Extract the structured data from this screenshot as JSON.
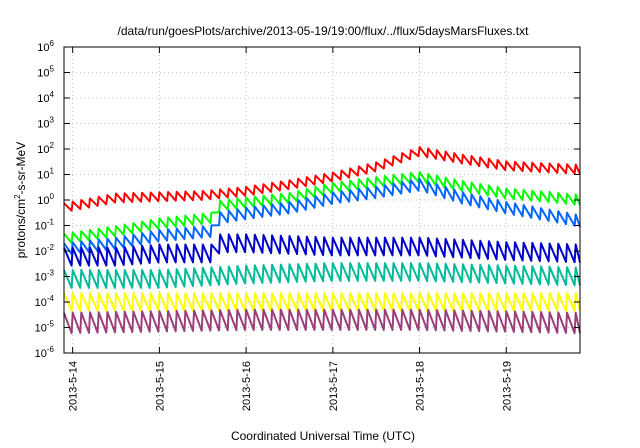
{
  "chart_data": {
    "type": "line",
    "title": "/data/run/goesPlots/archive/2013-05-19/19:00/flux/../flux/5daysMarsFluxes.txt",
    "xlabel": "Coordinated Universal Time (UTC)",
    "ylabel": "protons/cm²-s-sr-MeV",
    "ylabel_main": "protons/cm",
    "ylabel_sup": "2",
    "ylabel_rest": "-s-sr-MeV",
    "yscale": "log",
    "ylim": [
      1e-06,
      1000000.0
    ],
    "xlim": [
      -0.1,
      5.85
    ],
    "x_unit": "days after 2013-5-14",
    "yticks": [
      {
        "exp": -6,
        "base": "10",
        "sup": "-6"
      },
      {
        "exp": -5,
        "base": "10",
        "sup": "-5"
      },
      {
        "exp": -4,
        "base": "10",
        "sup": "-4"
      },
      {
        "exp": -3,
        "base": "10",
        "sup": "-3"
      },
      {
        "exp": -2,
        "base": "10",
        "sup": "-2"
      },
      {
        "exp": -1,
        "base": "10",
        "sup": "-1"
      },
      {
        "exp": 0,
        "base": "10",
        "sup": "0"
      },
      {
        "exp": 1,
        "base": "10",
        "sup": "1"
      },
      {
        "exp": 2,
        "base": "10",
        "sup": "2"
      },
      {
        "exp": 3,
        "base": "10",
        "sup": "3"
      },
      {
        "exp": 4,
        "base": "10",
        "sup": "4"
      },
      {
        "exp": 5,
        "base": "10",
        "sup": "5"
      },
      {
        "exp": 6,
        "base": "10",
        "sup": "6"
      }
    ],
    "xticks": [
      {
        "day": 0,
        "label": "2013-5-14"
      },
      {
        "day": 1,
        "label": "2013-5-15"
      },
      {
        "day": 2,
        "label": "2013-5-16"
      },
      {
        "day": 3,
        "label": "2013-5-17"
      },
      {
        "day": 4,
        "label": "2013-5-18"
      },
      {
        "day": 5,
        "label": "2013-5-19"
      }
    ],
    "grid": true,
    "legend": "none",
    "sawtooth_period_days": 0.1,
    "series": [
      {
        "color": "#ff0000",
        "amplitude_decades": 0.35,
        "envelope": [
          [
            -0.1,
            0.5
          ],
          [
            0.5,
            1.2
          ],
          [
            1.5,
            1.5
          ],
          [
            2.0,
            2.2
          ],
          [
            2.5,
            4
          ],
          [
            3.0,
            8
          ],
          [
            3.5,
            20
          ],
          [
            4.0,
            80
          ],
          [
            4.5,
            40
          ],
          [
            5.0,
            22
          ],
          [
            5.5,
            18
          ],
          [
            5.85,
            16
          ]
        ]
      },
      {
        "color": "#00ff00",
        "amplitude_decades": 0.4,
        "envelope": [
          [
            -0.1,
            0.03
          ],
          [
            0.5,
            0.06
          ],
          [
            1.0,
            0.12
          ],
          [
            1.6,
            0.2
          ],
          [
            1.7,
            0.6
          ],
          [
            2.0,
            0.8
          ],
          [
            2.5,
            1.2
          ],
          [
            3.0,
            3
          ],
          [
            3.5,
            5
          ],
          [
            4.0,
            8
          ],
          [
            4.5,
            3.5
          ],
          [
            5.0,
            1.8
          ],
          [
            5.5,
            1.3
          ],
          [
            5.85,
            1.0
          ]
        ]
      },
      {
        "color": "#0066ff",
        "amplitude_decades": 0.45,
        "envelope": [
          [
            -0.1,
            0.012
          ],
          [
            0.5,
            0.02
          ],
          [
            1.0,
            0.04
          ],
          [
            1.6,
            0.06
          ],
          [
            1.7,
            0.2
          ],
          [
            2.0,
            0.3
          ],
          [
            2.5,
            0.5
          ],
          [
            3.0,
            1.2
          ],
          [
            3.5,
            2
          ],
          [
            4.0,
            4
          ],
          [
            4.5,
            1.2
          ],
          [
            5.0,
            0.5
          ],
          [
            5.5,
            0.25
          ],
          [
            5.85,
            0.15
          ]
        ]
      },
      {
        "color": "#0000cc",
        "amplitude_decades": 0.7,
        "envelope": [
          [
            -0.1,
            0.006
          ],
          [
            0.5,
            0.006
          ],
          [
            1.0,
            0.008
          ],
          [
            1.6,
            0.008
          ],
          [
            1.7,
            0.02
          ],
          [
            2.0,
            0.02
          ],
          [
            3.0,
            0.015
          ],
          [
            4.0,
            0.015
          ],
          [
            5.0,
            0.01
          ],
          [
            5.85,
            0.008
          ]
        ]
      },
      {
        "color": "#00bb99",
        "amplitude_decades": 0.7,
        "envelope": [
          [
            -0.1,
            0.0008
          ],
          [
            1.0,
            0.0008
          ],
          [
            2.0,
            0.0012
          ],
          [
            3.0,
            0.0015
          ],
          [
            4.0,
            0.0015
          ],
          [
            5.0,
            0.0012
          ],
          [
            5.85,
            0.001
          ]
        ]
      },
      {
        "color": "#ffff00",
        "amplitude_decades": 0.7,
        "envelope": [
          [
            -0.1,
            0.0001
          ],
          [
            5.85,
            0.0001
          ]
        ]
      },
      {
        "color": "#9b3f7a",
        "amplitude_decades": 0.8,
        "envelope": [
          [
            -0.1,
            1.5e-05
          ],
          [
            2.0,
            2e-05
          ],
          [
            4.0,
            2e-05
          ],
          [
            5.85,
            1.5e-05
          ]
        ]
      }
    ]
  }
}
